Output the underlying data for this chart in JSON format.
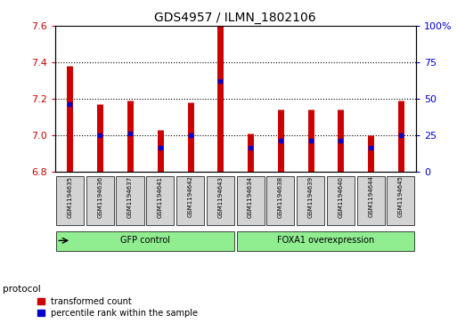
{
  "title": "GDS4957 / ILMN_1802106",
  "samples": [
    "GSM1194635",
    "GSM1194636",
    "GSM1194637",
    "GSM1194641",
    "GSM1194642",
    "GSM1194643",
    "GSM1194634",
    "GSM1194638",
    "GSM1194639",
    "GSM1194640",
    "GSM1194644",
    "GSM1194645"
  ],
  "groups": [
    {
      "name": "GFP control",
      "count": 6,
      "color": "#90ee90"
    },
    {
      "name": "FOXA1 overexpression",
      "count": 6,
      "color": "#90ee90"
    }
  ],
  "bar_top": [
    7.38,
    7.17,
    7.19,
    7.03,
    7.18,
    7.6,
    7.01,
    7.14,
    7.14,
    7.14,
    7.0,
    7.19
  ],
  "bar_bottom": 6.8,
  "blue_dot_values": [
    7.17,
    7.0,
    7.01,
    6.93,
    7.0,
    7.3,
    6.93,
    6.97,
    6.97,
    6.97,
    6.93,
    7.0
  ],
  "ylim": [
    6.8,
    7.6
  ],
  "yticks": [
    6.8,
    7.0,
    7.2,
    7.4,
    7.6
  ],
  "right_yticks": [
    0,
    25,
    50,
    75,
    100
  ],
  "right_ylim": [
    0,
    100
  ],
  "bar_color": "#cc0000",
  "dot_color": "#0000cc",
  "grid_color": "black",
  "background_color": "#ffffff",
  "tick_color_left": "#cc0000",
  "tick_color_right": "#0000cc",
  "sample_box_color": "#d3d3d3",
  "protocol_label": "protocol",
  "legend_items": [
    "transformed count",
    "percentile rank within the sample"
  ]
}
